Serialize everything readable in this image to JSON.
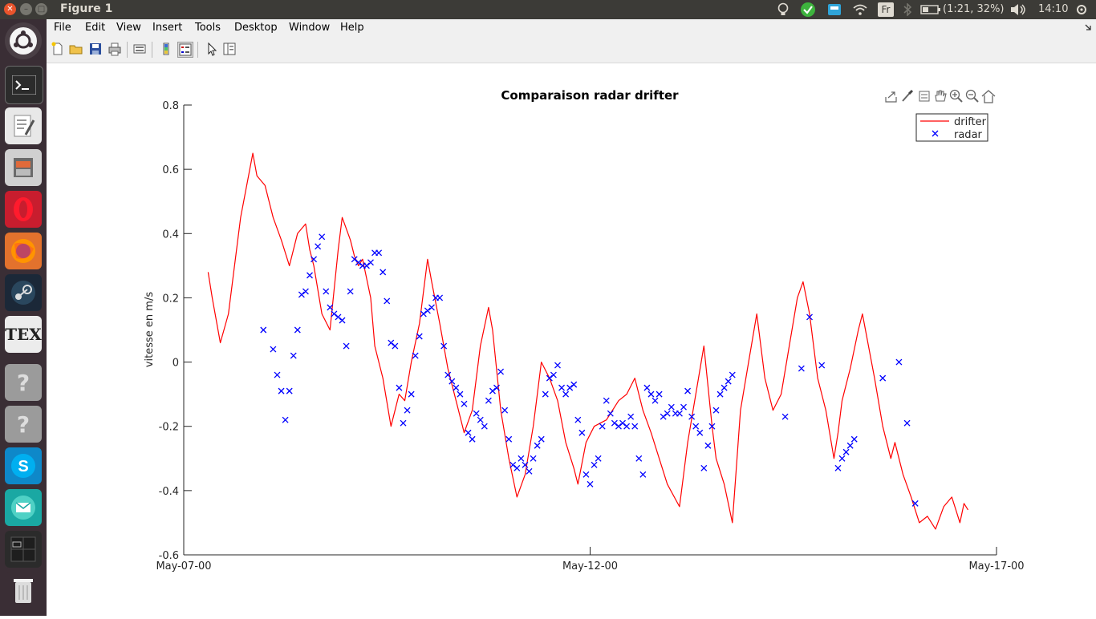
{
  "system": {
    "window_title": "Figure 1",
    "battery": "(1:21, 32%)",
    "clock": "14:10",
    "keyboard": "Fr"
  },
  "menubar": {
    "items": [
      "File",
      "Edit",
      "View",
      "Insert",
      "Tools",
      "Desktop",
      "Window",
      "Help"
    ]
  },
  "toolbar_icons": [
    "new-figure-icon",
    "open-file-icon",
    "save-icon",
    "print-icon",
    "link-plot-icon",
    "insert-colorbar-icon",
    "insert-legend-icon",
    "edit-plot-icon",
    "property-inspector-icon"
  ],
  "axes_toolbar_icons": [
    "export-icon",
    "brush-icon",
    "data-tip-icon",
    "pan-icon",
    "zoom-in-icon",
    "zoom-out-icon",
    "home-icon"
  ],
  "launcher": [
    "terminal",
    "text-editor",
    "files",
    "opera",
    "firefox",
    "steam",
    "texmaker",
    "unknown-app-1",
    "unknown-app-2",
    "skype",
    "mail",
    "workspace-switcher",
    "trash"
  ],
  "colors": {
    "drifter": "#ff0000",
    "radar": "#0000ff"
  },
  "chart_data": {
    "type": "line",
    "title": "Comparaison radar drifter",
    "xlabel": "",
    "ylabel": "vitesse en m/s",
    "xlim": [
      0,
      10
    ],
    "ylim": [
      -0.6,
      0.8
    ],
    "xticks": [
      0,
      5,
      10
    ],
    "xtick_labels": [
      "May-07-00",
      "May-12-00",
      "May-17-00"
    ],
    "yticks": [
      -0.6,
      -0.4,
      -0.2,
      0,
      0.2,
      0.4,
      0.6,
      0.8
    ],
    "ytick_labels": [
      "-0.6",
      "-0.4",
      "-0.2",
      "0",
      "0.2",
      "0.4",
      "0.6",
      "0.8"
    ],
    "grid": false,
    "legend_position": "top-right",
    "series": [
      {
        "name": "drifter",
        "style": "line",
        "x": [
          0.3,
          0.35,
          0.45,
          0.55,
          0.7,
          0.85,
          0.9,
          1.0,
          1.1,
          1.2,
          1.3,
          1.4,
          1.5,
          1.55,
          1.6,
          1.7,
          1.8,
          1.9,
          1.95,
          2.05,
          2.1,
          2.15,
          2.2,
          2.3,
          2.35,
          2.45,
          2.55,
          2.65,
          2.72,
          2.8,
          2.9,
          3.0,
          3.05,
          3.15,
          3.25,
          3.35,
          3.45,
          3.55,
          3.65,
          3.75,
          3.8,
          3.9,
          4.0,
          4.1,
          4.2,
          4.3,
          4.35,
          4.4,
          4.5,
          4.6,
          4.7,
          4.8,
          4.85,
          4.95,
          5.05,
          5.2,
          5.35,
          5.45,
          5.55,
          5.65,
          5.75,
          5.85,
          5.95,
          6.1,
          6.2,
          6.3,
          6.4,
          6.5,
          6.55,
          6.65,
          6.75,
          6.85,
          6.95,
          7.05,
          7.15,
          7.25,
          7.35,
          7.45,
          7.55,
          7.62,
          7.7,
          7.8,
          7.9,
          8.0,
          8.05,
          8.1,
          8.2,
          8.3,
          8.35,
          8.5,
          8.6,
          8.7,
          8.75,
          8.85,
          8.95,
          9.05,
          9.15,
          9.25,
          9.35,
          9.45,
          9.55,
          9.6,
          9.65
        ],
        "values": [
          0.28,
          0.2,
          0.06,
          0.15,
          0.45,
          0.65,
          0.58,
          0.55,
          0.45,
          0.38,
          0.3,
          0.4,
          0.43,
          0.35,
          0.3,
          0.15,
          0.1,
          0.35,
          0.45,
          0.38,
          0.33,
          0.3,
          0.32,
          0.2,
          0.05,
          -0.05,
          -0.2,
          -0.1,
          -0.12,
          0.0,
          0.12,
          0.32,
          0.25,
          0.12,
          -0.02,
          -0.12,
          -0.22,
          -0.15,
          0.05,
          0.17,
          0.1,
          -0.15,
          -0.3,
          -0.42,
          -0.35,
          -0.2,
          -0.1,
          0.0,
          -0.05,
          -0.12,
          -0.25,
          -0.33,
          -0.38,
          -0.25,
          -0.2,
          -0.18,
          -0.12,
          -0.1,
          -0.05,
          -0.15,
          -0.22,
          -0.3,
          -0.38,
          -0.45,
          -0.25,
          -0.1,
          0.05,
          -0.2,
          -0.3,
          -0.38,
          -0.5,
          -0.15,
          0.0,
          0.15,
          -0.05,
          -0.15,
          -0.1,
          0.05,
          0.2,
          0.25,
          0.15,
          -0.05,
          -0.15,
          -0.3,
          -0.22,
          -0.12,
          -0.02,
          0.1,
          0.15,
          -0.05,
          -0.2,
          -0.3,
          -0.25,
          -0.35,
          -0.42,
          -0.5,
          -0.48,
          -0.52,
          -0.45,
          -0.42,
          -0.5,
          -0.44,
          -0.46
        ]
      },
      {
        "name": "radar",
        "style": "x-marker",
        "x": [
          0.98,
          1.1,
          1.15,
          1.2,
          1.25,
          1.3,
          1.35,
          1.4,
          1.45,
          1.5,
          1.55,
          1.6,
          1.65,
          1.7,
          1.75,
          1.8,
          1.85,
          1.9,
          1.95,
          2.0,
          2.05,
          2.1,
          2.15,
          2.2,
          2.25,
          2.3,
          2.35,
          2.4,
          2.45,
          2.5,
          2.55,
          2.6,
          2.65,
          2.7,
          2.75,
          2.8,
          2.85,
          2.9,
          2.95,
          3.0,
          3.05,
          3.1,
          3.15,
          3.2,
          3.25,
          3.3,
          3.35,
          3.4,
          3.45,
          3.5,
          3.55,
          3.6,
          3.65,
          3.7,
          3.75,
          3.8,
          3.85,
          3.9,
          3.95,
          4.0,
          4.05,
          4.1,
          4.15,
          4.2,
          4.25,
          4.3,
          4.35,
          4.4,
          4.45,
          4.5,
          4.55,
          4.6,
          4.65,
          4.7,
          4.75,
          4.8,
          4.85,
          4.9,
          4.95,
          5.0,
          5.05,
          5.1,
          5.15,
          5.2,
          5.25,
          5.3,
          5.35,
          5.4,
          5.45,
          5.5,
          5.55,
          5.6,
          5.65,
          5.7,
          5.75,
          5.8,
          5.85,
          5.9,
          5.95,
          6.0,
          6.05,
          6.1,
          6.15,
          6.2,
          6.25,
          6.3,
          6.35,
          6.4,
          6.45,
          6.5,
          6.55,
          6.6,
          6.65,
          6.7,
          6.75,
          7.4,
          7.6,
          7.7,
          7.85,
          8.05,
          8.1,
          8.15,
          8.2,
          8.25,
          8.6,
          8.8,
          8.9,
          9.0
        ],
        "values": [
          0.1,
          0.04,
          -0.04,
          -0.09,
          -0.18,
          -0.09,
          0.02,
          0.1,
          0.21,
          0.22,
          0.27,
          0.32,
          0.36,
          0.39,
          0.22,
          0.17,
          0.15,
          0.14,
          0.13,
          0.05,
          0.22,
          0.32,
          0.31,
          0.3,
          0.3,
          0.31,
          0.34,
          0.34,
          0.28,
          0.19,
          0.06,
          0.05,
          -0.08,
          -0.19,
          -0.15,
          -0.1,
          0.02,
          0.08,
          0.15,
          0.16,
          0.17,
          0.2,
          0.2,
          0.05,
          -0.04,
          -0.06,
          -0.08,
          -0.1,
          -0.13,
          -0.22,
          -0.24,
          -0.16,
          -0.18,
          -0.2,
          -0.12,
          -0.09,
          -0.08,
          -0.03,
          -0.15,
          -0.24,
          -0.32,
          -0.33,
          -0.3,
          -0.32,
          -0.34,
          -0.3,
          -0.26,
          -0.24,
          -0.1,
          -0.05,
          -0.04,
          -0.01,
          -0.08,
          -0.1,
          -0.08,
          -0.07,
          -0.18,
          -0.22,
          -0.35,
          -0.38,
          -0.32,
          -0.3,
          -0.2,
          -0.12,
          -0.16,
          -0.19,
          -0.2,
          -0.19,
          -0.2,
          -0.17,
          -0.2,
          -0.3,
          -0.35,
          -0.08,
          -0.1,
          -0.12,
          -0.1,
          -0.17,
          -0.16,
          -0.14,
          -0.16,
          -0.16,
          -0.14,
          -0.09,
          -0.17,
          -0.2,
          -0.22,
          -0.33,
          -0.26,
          -0.2,
          -0.15,
          -0.1,
          -0.08,
          -0.06,
          -0.04,
          -0.17,
          -0.02,
          0.14,
          -0.01,
          -0.33,
          -0.3,
          -0.28,
          -0.26,
          -0.24,
          -0.05,
          0.0,
          -0.19,
          -0.44
        ]
      }
    ]
  }
}
